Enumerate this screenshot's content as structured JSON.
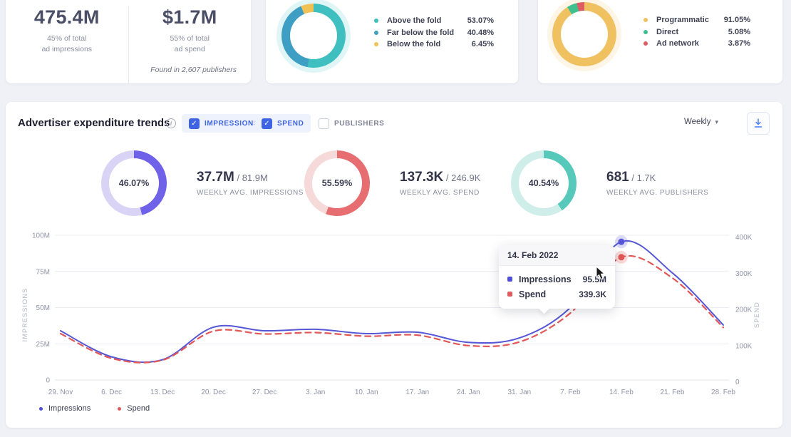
{
  "icons": {
    "check": "✓",
    "caret": "▾",
    "info": "i"
  },
  "top_cards": {
    "stats": {
      "impressions": {
        "value": "475.4M",
        "caption": "45% of total\nad impressions"
      },
      "spend": {
        "value": "$1.7M",
        "caption": "55% of total\nad spend"
      },
      "footnote": "Found in 2,607 publishers"
    },
    "fold": {
      "segments": [
        {
          "label": "Above the fold",
          "value": "53.07%",
          "pct": 53.07,
          "color": "#3fbfbf"
        },
        {
          "label": "Far below the fold",
          "value": "40.48%",
          "pct": 40.48,
          "color": "#3f9ec4"
        },
        {
          "label": "Below the fold",
          "value": "6.45%",
          "pct": 6.45,
          "color": "#f0c155"
        }
      ]
    },
    "buying": {
      "segments": [
        {
          "label": "Programmatic",
          "value": "91.05%",
          "pct": 91.05,
          "color": "#f0c161"
        },
        {
          "label": "Direct",
          "value": "5.08%",
          "pct": 5.08,
          "color": "#3fc08e"
        },
        {
          "label": "Ad network",
          "value": "3.87%",
          "pct": 3.87,
          "color": "#e05c64"
        }
      ]
    }
  },
  "panel": {
    "title": "Advertiser expenditure trends",
    "toggles": [
      {
        "label": "IMPRESSIONS",
        "checked": true
      },
      {
        "label": "SPEND",
        "checked": true
      },
      {
        "label": "PUBLISHERS",
        "checked": false
      }
    ],
    "interval": "Weekly",
    "fraction_sep": "/",
    "gauges": [
      {
        "pct_label": "46.07%",
        "pct": 46.07,
        "value": "37.7M",
        "total": "81.9M",
        "caption": "WEEKLY AVG. IMPRESSIONS",
        "color": "#6f61e8",
        "track": "#d9d4f6"
      },
      {
        "pct_label": "55.59%",
        "pct": 55.59,
        "value": "137.3K",
        "total": "246.9K",
        "caption": "WEEKLY AVG. SPEND",
        "color": "#e66e70",
        "track": "#f6d9d9"
      },
      {
        "pct_label": "40.54%",
        "pct": 40.54,
        "value": "681",
        "total": "1.7K",
        "caption": "WEEKLY AVG. PUBLISHERS",
        "color": "#57c9ba",
        "track": "#cfeeea"
      }
    ],
    "tooltip": {
      "date": "14. Feb 2022",
      "rows": [
        {
          "label": "Impressions",
          "value": "95.5M",
          "color": "#4f4fd8"
        },
        {
          "label": "Spend",
          "value": "339.3K",
          "color": "#e05c5c"
        }
      ]
    },
    "legend": [
      {
        "label": "Impressions",
        "color": "#4f4fd8"
      },
      {
        "label": "Spend",
        "color": "#e05c5c"
      }
    ]
  },
  "chart_data": {
    "type": "line",
    "title": "Advertiser expenditure trends",
    "x": [
      "29. Nov",
      "6. Dec",
      "13. Dec",
      "20. Dec",
      "27. Dec",
      "3. Jan",
      "10. Jan",
      "17. Jan",
      "24. Jan",
      "31. Jan",
      "7. Feb",
      "14. Feb",
      "21. Feb",
      "28. Feb"
    ],
    "series": [
      {
        "name": "Impressions",
        "axis": "left",
        "unit": "M",
        "color": "#5557d6",
        "style": "solid",
        "values": [
          34,
          16,
          14,
          36.5,
          34,
          35,
          32,
          33,
          26,
          29,
          50,
          95.5,
          74,
          38
        ]
      },
      {
        "name": "Spend",
        "axis": "right",
        "unit": "K",
        "color": "#e25757",
        "style": "dashed",
        "values": [
          128,
          60,
          55,
          135,
          127,
          131,
          121,
          124,
          95,
          105,
          185,
          339.3,
          282,
          145
        ]
      }
    ],
    "left_axis": {
      "label": "IMPRESSIONS",
      "ticks": [
        "0",
        "25M",
        "50M",
        "75M",
        "100M"
      ],
      "min": 0,
      "max": 100
    },
    "right_axis": {
      "label": "SPEND",
      "ticks": [
        "0",
        "100K",
        "200K",
        "300K",
        "400K"
      ],
      "min": 0,
      "max": 400
    },
    "grid": true,
    "legend_position": "bottom-left",
    "highlight_index": 11
  }
}
